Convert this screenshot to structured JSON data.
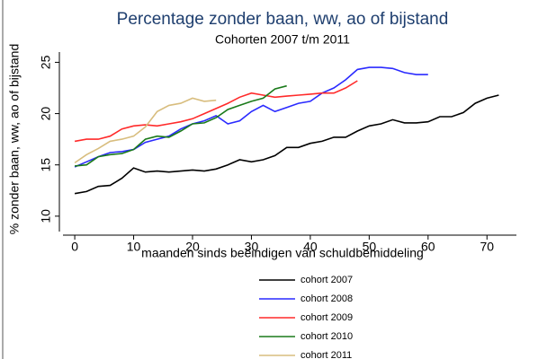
{
  "chart_data": {
    "type": "line",
    "title": "Percentage zonder baan, ww, ao of bijstand",
    "subtitle": "Cohorten 2007 t/m 2011",
    "x_label": "maanden sinds beëindigen van schuldbemiddeling",
    "y_label": "% zonder baan, ww, ao of bijstand",
    "x": [
      0,
      2,
      4,
      6,
      8,
      10,
      12,
      14,
      16,
      18,
      20,
      22,
      24,
      26,
      28,
      30,
      32,
      34,
      36,
      38,
      40,
      42,
      44,
      46,
      48,
      50,
      52,
      54,
      56,
      58,
      60,
      62,
      64,
      66,
      68,
      70,
      72
    ],
    "series": [
      {
        "name": "cohort 2007",
        "color": "#000000",
        "values": [
          12.2,
          12.4,
          12.9,
          13.0,
          13.7,
          14.7,
          14.3,
          14.4,
          14.3,
          14.4,
          14.5,
          14.4,
          14.6,
          15.0,
          15.5,
          15.3,
          15.5,
          15.9,
          16.7,
          16.7,
          17.1,
          17.3,
          17.7,
          17.7,
          18.3,
          18.8,
          19.0,
          19.4,
          19.1,
          19.1,
          19.2,
          19.7,
          19.7,
          20.1,
          21.0,
          21.5,
          21.8
        ]
      },
      {
        "name": "cohort 2008",
        "color": "#2a2aff",
        "values": [
          14.8,
          15.3,
          15.8,
          16.2,
          16.3,
          16.5,
          17.2,
          17.5,
          17.8,
          18.5,
          19.0,
          19.3,
          19.8,
          19.0,
          19.3,
          20.2,
          20.8,
          20.2,
          20.6,
          21.0,
          21.2,
          22.0,
          22.5,
          23.3,
          24.3,
          24.5,
          24.5,
          24.4,
          24.0,
          23.8,
          23.8,
          null,
          null,
          null,
          null,
          null,
          null
        ]
      },
      {
        "name": "cohort 2009",
        "color": "#ff2a2a",
        "values": [
          17.3,
          17.5,
          17.5,
          17.8,
          18.5,
          18.8,
          18.9,
          18.8,
          19.0,
          19.2,
          19.5,
          20.0,
          20.5,
          21.0,
          21.6,
          22.0,
          21.8,
          21.6,
          21.7,
          21.8,
          21.9,
          22.0,
          22.0,
          22.5,
          23.2,
          null,
          null,
          null,
          null,
          null,
          null,
          null,
          null,
          null,
          null,
          null,
          null
        ]
      },
      {
        "name": "cohort 2010",
        "color": "#1a7a1a",
        "values": [
          14.9,
          15.0,
          15.8,
          16.0,
          16.1,
          16.5,
          17.5,
          17.8,
          17.7,
          18.3,
          19.0,
          19.1,
          19.6,
          20.4,
          20.8,
          21.2,
          21.5,
          22.4,
          22.7,
          null,
          null,
          null,
          null,
          null,
          null,
          null,
          null,
          null,
          null,
          null,
          null,
          null,
          null,
          null,
          null,
          null,
          null
        ]
      },
      {
        "name": "cohort 2011",
        "color": "#d8bd7e",
        "values": [
          15.2,
          16.0,
          16.6,
          17.3,
          17.5,
          17.8,
          18.7,
          20.2,
          20.8,
          21.0,
          21.5,
          21.2,
          21.3,
          null,
          null,
          null,
          null,
          null,
          null,
          null,
          null,
          null,
          null,
          null,
          null,
          null,
          null,
          null,
          null,
          null,
          null,
          null,
          null,
          null,
          null,
          null,
          null
        ]
      }
    ],
    "xlim": [
      -2,
      75
    ],
    "xticks": [
      0,
      10,
      20,
      30,
      40,
      50,
      60,
      70
    ],
    "ylim": [
      8.5,
      26
    ],
    "yticks": [
      10,
      15,
      20,
      25
    ],
    "grid": false,
    "legend": "bottom"
  }
}
